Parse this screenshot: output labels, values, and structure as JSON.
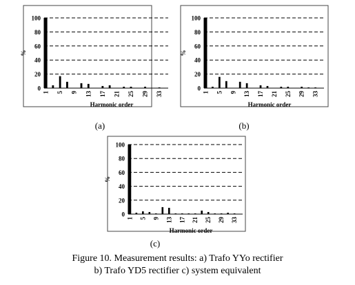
{
  "figure": {
    "caption_line1": "Figure 10. Measurement results: a) Trafo YYo rectifier",
    "caption_line2": "b) Trafo YD5 rectifier c) system equivalent"
  },
  "chart_data": [
    {
      "type": "bar",
      "panel_label": "(a)",
      "xlabel": "Harmonic order",
      "ylabel": "%",
      "ylim": [
        0,
        100
      ],
      "yticks": [
        0,
        20,
        40,
        60,
        80,
        100
      ],
      "grid": "dashed horizontal",
      "x": [
        1,
        2,
        3,
        4,
        5,
        6,
        7,
        8,
        9,
        10,
        11,
        12,
        13,
        14,
        15,
        16,
        17,
        18,
        19,
        20,
        21,
        22,
        23,
        24,
        25,
        26,
        27,
        28,
        29,
        30,
        31,
        32,
        33,
        34,
        35
      ],
      "xtick_labels": [
        "1",
        "5",
        "9",
        "13",
        "17",
        "21",
        "25",
        "29",
        "33"
      ],
      "values": [
        100,
        0,
        4,
        0,
        17,
        0,
        9,
        0,
        0,
        0,
        7,
        0,
        6,
        0,
        0,
        0,
        3,
        0,
        4,
        0,
        0,
        0,
        2,
        0,
        2,
        0,
        0,
        0,
        2,
        0,
        0,
        0,
        1,
        0,
        0
      ]
    },
    {
      "type": "bar",
      "panel_label": "(b)",
      "xlabel": "Harmonic order",
      "ylabel": "%",
      "ylim": [
        0,
        100
      ],
      "yticks": [
        0,
        20,
        40,
        60,
        80,
        100
      ],
      "grid": "dashed horizontal",
      "x": [
        1,
        2,
        3,
        4,
        5,
        6,
        7,
        8,
        9,
        10,
        11,
        12,
        13,
        14,
        15,
        16,
        17,
        18,
        19,
        20,
        21,
        22,
        23,
        24,
        25,
        26,
        27,
        28,
        29,
        30,
        31,
        32,
        33,
        34,
        35
      ],
      "xtick_labels": [
        "1",
        "5",
        "9",
        "13",
        "17",
        "21",
        "25",
        "29",
        "33"
      ],
      "values": [
        100,
        0,
        2,
        0,
        16,
        0,
        10,
        0,
        0,
        0,
        9,
        0,
        7,
        0,
        0,
        0,
        4,
        0,
        3,
        0,
        0,
        0,
        2,
        0,
        2,
        0,
        0,
        0,
        2,
        0,
        1,
        0,
        1,
        0,
        0
      ]
    },
    {
      "type": "bar",
      "panel_label": "(c)",
      "xlabel": "Harmonic order",
      "ylabel": "%",
      "ylim": [
        0,
        100
      ],
      "yticks": [
        0,
        20,
        40,
        60,
        80,
        100
      ],
      "grid": "dashed horizontal",
      "x": [
        1,
        2,
        3,
        4,
        5,
        6,
        7,
        8,
        9,
        10,
        11,
        12,
        13,
        14,
        15,
        16,
        17,
        18,
        19,
        20,
        21,
        22,
        23,
        24,
        25,
        26,
        27,
        28,
        29,
        30,
        31,
        32,
        33,
        34,
        35
      ],
      "xtick_labels": [
        "1",
        "5",
        "9",
        "13",
        "17",
        "21",
        "25",
        "29",
        "33"
      ],
      "values": [
        100,
        0,
        2,
        0,
        4,
        0,
        3,
        0,
        1,
        0,
        10,
        0,
        9,
        0,
        1,
        0,
        1,
        0,
        1,
        0,
        1,
        0,
        5,
        0,
        3,
        0,
        1,
        0,
        1,
        0,
        2,
        0,
        1,
        0,
        0
      ]
    }
  ]
}
